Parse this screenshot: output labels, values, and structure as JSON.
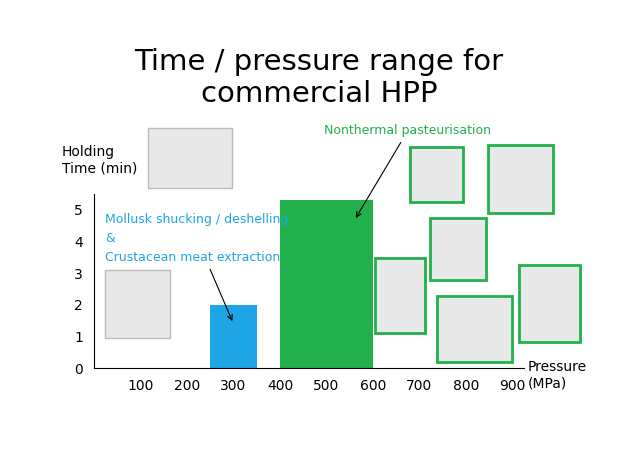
{
  "chart_data": {
    "type": "bar",
    "title": "Time / pressure range for\ncommercial HPP",
    "x_label": "Pressure\n(MPa)",
    "y_label": "Holding\nTime (min)",
    "bars": [
      {
        "name": "Mollusk shucking / deshelling\n&\nCrustacean meat extraction",
        "x_start": 250,
        "x_end": 350,
        "value": 2,
        "color": "#1ea5e6"
      },
      {
        "name": "Nonthermal pasteurisation",
        "x_start": 400,
        "x_end": 600,
        "value": 5.3,
        "color": "#21b04b"
      }
    ],
    "xlim": [
      0,
      925
    ],
    "xticks": [
      100,
      200,
      300,
      400,
      500,
      600,
      700,
      800,
      900
    ],
    "ylim": [
      0,
      5.5
    ],
    "yticks": [
      0,
      1,
      2,
      3,
      4,
      5
    ],
    "grid": false
  }
}
